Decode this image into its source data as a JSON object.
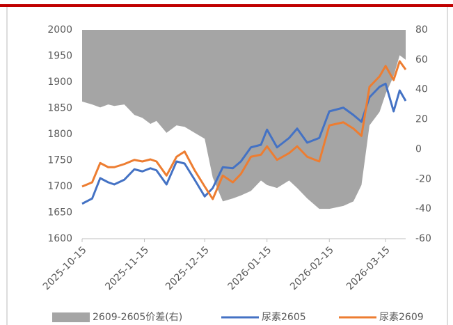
{
  "chart_data": {
    "type": "line",
    "x": [
      "2025-10-15",
      "2025-10-20",
      "2025-10-24",
      "2025-10-28",
      "2025-10-31",
      "2025-11-05",
      "2025-11-10",
      "2025-11-14",
      "2025-11-18",
      "2025-11-21",
      "2025-11-26",
      "2025-12-01",
      "2025-12-05",
      "2025-12-10",
      "2025-12-15",
      "2025-12-19",
      "2025-12-24",
      "2025-12-29",
      "2026-01-02",
      "2026-01-07",
      "2026-01-12",
      "2026-01-15",
      "2026-01-20",
      "2026-01-26",
      "2026-01-30",
      "2026-02-04",
      "2026-02-10",
      "2026-02-15",
      "2026-02-22",
      "2026-02-27",
      "2026-03-03",
      "2026-03-07",
      "2026-03-12",
      "2026-03-15",
      "2026-03-19",
      "2026-03-22",
      "2026-03-25"
    ],
    "series": [
      {
        "name": "2609-2605价差(右)",
        "color": "#a5a5a5",
        "type": "area",
        "axis": "y2",
        "values": [
          32,
          30,
          28,
          30,
          29,
          30,
          23,
          21,
          17,
          19,
          11,
          16,
          15,
          11,
          7,
          -19,
          -35,
          -33,
          -31,
          -28,
          -21,
          -24,
          -26,
          -21,
          -26,
          -33,
          -40,
          -40,
          -38,
          -35,
          -24,
          16,
          25,
          37,
          49,
          63,
          60
        ]
      },
      {
        "name": "尿素2605",
        "color": "#4472c4",
        "type": "line",
        "values": [
          1667,
          1677,
          1716,
          1708,
          1704,
          1713,
          1733,
          1729,
          1735,
          1731,
          1704,
          1748,
          1744,
          1713,
          1681,
          1697,
          1737,
          1735,
          1748,
          1775,
          1780,
          1809,
          1775,
          1793,
          1811,
          1784,
          1793,
          1844,
          1851,
          1837,
          1824,
          1871,
          1891,
          1897,
          1844,
          1884,
          1864
        ]
      },
      {
        "name": "尿素2609",
        "color": "#ed7d31",
        "type": "line",
        "values": [
          1700,
          1708,
          1745,
          1737,
          1737,
          1743,
          1751,
          1748,
          1752,
          1748,
          1721,
          1757,
          1767,
          1731,
          1700,
          1676,
          1721,
          1708,
          1724,
          1757,
          1761,
          1777,
          1751,
          1764,
          1777,
          1757,
          1748,
          1817,
          1823,
          1811,
          1797,
          1891,
          1911,
          1931,
          1904,
          1940,
          1924
        ]
      }
    ],
    "xlim": [
      "2025-10-15",
      "2026-03-25"
    ],
    "xticks": [
      "2025-10-15",
      "2025-11-15",
      "2025-12-15",
      "2026-01-15",
      "2026-02-15",
      "2026-03-15"
    ],
    "ylim": [
      1600,
      2000
    ],
    "yticks": [
      1600,
      1650,
      1700,
      1750,
      1800,
      1850,
      1900,
      1950,
      2000
    ],
    "y2lim": [
      -60,
      80
    ],
    "y2ticks": [
      -60,
      -40,
      -20,
      0,
      20,
      40,
      60,
      80
    ]
  }
}
